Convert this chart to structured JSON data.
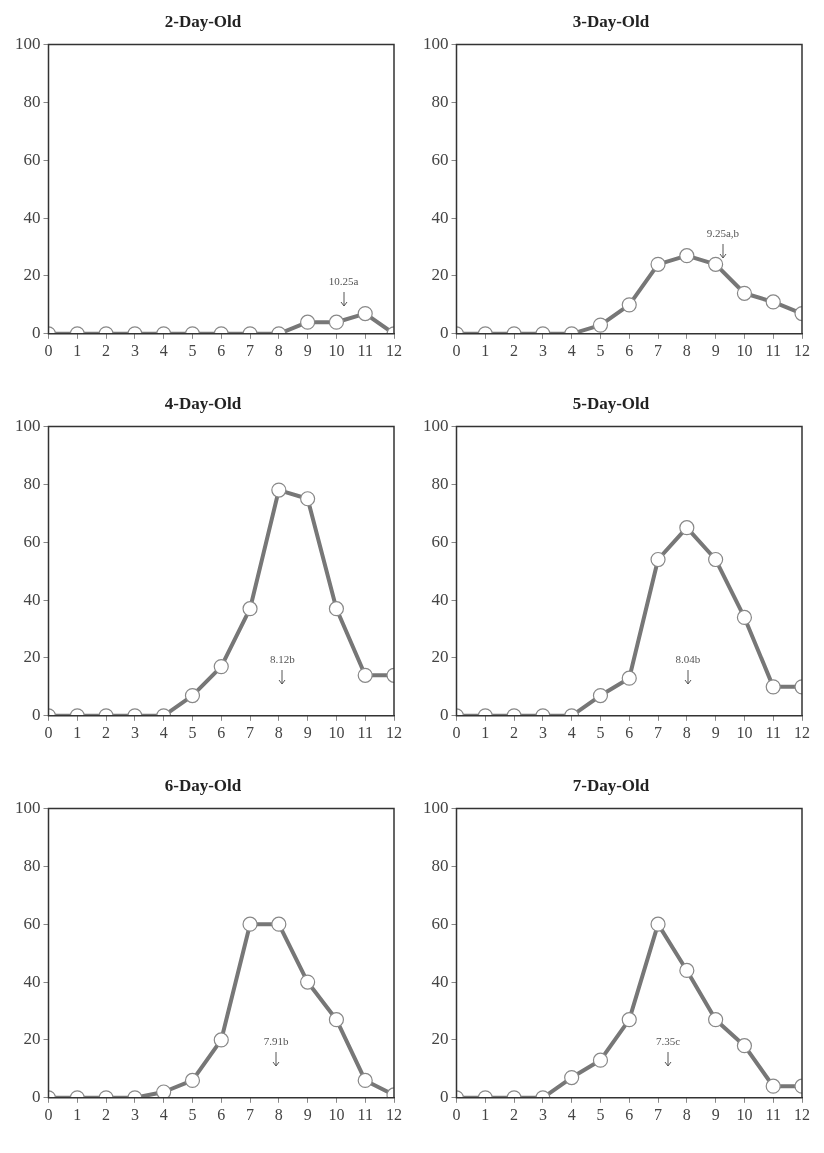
{
  "chart_data": [
    {
      "type": "line",
      "title": "2-Day-Old",
      "x": [
        0,
        1,
        2,
        3,
        4,
        5,
        6,
        7,
        8,
        9,
        10,
        11,
        12
      ],
      "series": [
        {
          "color": "#777777",
          "values": [
            0,
            0,
            0,
            0,
            0,
            0,
            0,
            0,
            0,
            4,
            4,
            7,
            0
          ]
        }
      ],
      "xlim": [
        0,
        12
      ],
      "xticks": [
        0,
        1,
        2,
        3,
        4,
        5,
        6,
        7,
        8,
        9,
        10,
        11,
        12
      ],
      "ylim": [
        0,
        100
      ],
      "yticks": [
        0,
        20,
        40,
        60,
        80,
        100
      ],
      "marker": "circle",
      "grid": false,
      "ref_lines": [
        {
          "axis": "x",
          "value": 10.25,
          "label": "10.25a"
        }
      ]
    },
    {
      "type": "line",
      "title": "3-Day-Old",
      "x": [
        0,
        1,
        2,
        3,
        4,
        5,
        6,
        7,
        8,
        9,
        10,
        11,
        12
      ],
      "series": [
        {
          "color": "#777777",
          "values": [
            0,
            0,
            0,
            0,
            0,
            3,
            10,
            24,
            27,
            24,
            14,
            11,
            7
          ]
        }
      ],
      "xlim": [
        0,
        12
      ],
      "xticks": [
        0,
        1,
        2,
        3,
        4,
        5,
        6,
        7,
        8,
        9,
        10,
        11,
        12
      ],
      "ylim": [
        0,
        100
      ],
      "yticks": [
        0,
        20,
        40,
        60,
        80,
        100
      ],
      "marker": "circle",
      "grid": false,
      "ref_lines": [
        {
          "axis": "x",
          "value": 9.25,
          "label": "9.25a,b"
        }
      ]
    },
    {
      "type": "line",
      "title": "4-Day-Old",
      "x": [
        0,
        1,
        2,
        3,
        4,
        5,
        6,
        7,
        8,
        9,
        10,
        11,
        12
      ],
      "series": [
        {
          "color": "#777777",
          "values": [
            0,
            0,
            0,
            0,
            0,
            7,
            17,
            37,
            78,
            75,
            37,
            14,
            14
          ]
        }
      ],
      "xlim": [
        0,
        12
      ],
      "xticks": [
        0,
        1,
        2,
        3,
        4,
        5,
        6,
        7,
        8,
        9,
        10,
        11,
        12
      ],
      "ylim": [
        0,
        100
      ],
      "yticks": [
        0,
        20,
        40,
        60,
        80,
        100
      ],
      "marker": "circle",
      "grid": false,
      "ref_lines": [
        {
          "axis": "x",
          "value": 8.12,
          "label": "8.12b"
        }
      ]
    },
    {
      "type": "line",
      "title": "5-Day-Old",
      "x": [
        0,
        1,
        2,
        3,
        4,
        5,
        6,
        7,
        8,
        9,
        10,
        11,
        12
      ],
      "series": [
        {
          "color": "#777777",
          "values": [
            0,
            0,
            0,
            0,
            0,
            7,
            13,
            54,
            65,
            54,
            34,
            10,
            10
          ]
        }
      ],
      "xlim": [
        0,
        12
      ],
      "xticks": [
        0,
        1,
        2,
        3,
        4,
        5,
        6,
        7,
        8,
        9,
        10,
        11,
        12
      ],
      "ylim": [
        0,
        100
      ],
      "yticks": [
        0,
        20,
        40,
        60,
        80,
        100
      ],
      "marker": "circle",
      "grid": false,
      "ref_lines": [
        {
          "axis": "x",
          "value": 8.04,
          "label": "8.04b"
        }
      ]
    },
    {
      "type": "line",
      "title": "6-Day-Old",
      "x": [
        0,
        1,
        2,
        3,
        4,
        5,
        6,
        7,
        8,
        9,
        10,
        11,
        12
      ],
      "series": [
        {
          "color": "#777777",
          "values": [
            0,
            0,
            0,
            0,
            2,
            6,
            20,
            60,
            60,
            40,
            27,
            6,
            1
          ]
        }
      ],
      "xlim": [
        0,
        12
      ],
      "xticks": [
        0,
        1,
        2,
        3,
        4,
        5,
        6,
        7,
        8,
        9,
        10,
        11,
        12
      ],
      "ylim": [
        0,
        100
      ],
      "yticks": [
        0,
        20,
        40,
        60,
        80,
        100
      ],
      "marker": "circle",
      "grid": false,
      "ref_lines": [
        {
          "axis": "x",
          "value": 7.91,
          "label": "7.91b"
        }
      ]
    },
    {
      "type": "line",
      "title": "7-Day-Old",
      "x": [
        0,
        1,
        2,
        3,
        4,
        5,
        6,
        7,
        8,
        9,
        10,
        11,
        12
      ],
      "series": [
        {
          "color": "#777777",
          "values": [
            0,
            0,
            0,
            0,
            7,
            13,
            27,
            60,
            44,
            27,
            18,
            4,
            4
          ]
        }
      ],
      "xlim": [
        0,
        12
      ],
      "xticks": [
        0,
        1,
        2,
        3,
        4,
        5,
        6,
        7,
        8,
        9,
        10,
        11,
        12
      ],
      "ylim": [
        0,
        100
      ],
      "yticks": [
        0,
        20,
        40,
        60,
        80,
        100
      ],
      "marker": "circle",
      "grid": false,
      "ref_lines": [
        {
          "axis": "x",
          "value": 7.35,
          "label": "7.35c"
        }
      ]
    }
  ]
}
